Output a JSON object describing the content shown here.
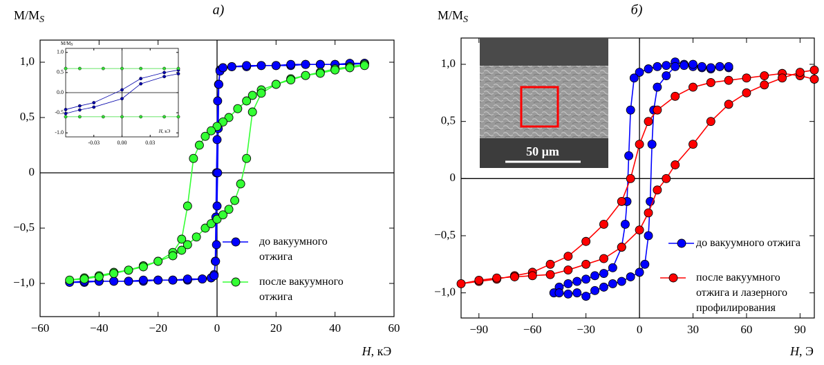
{
  "chart_data": [
    {
      "type": "line",
      "title": "а)",
      "ylabel": "M/M",
      "ylabel_sub": "S",
      "xlabel_var": "H",
      "xlabel_unit": ", кЭ",
      "xlim": [
        -60,
        60
      ],
      "ylim": [
        -1.3,
        1.2
      ],
      "xticks": [
        {
          "value": -60,
          "label": "−60"
        },
        {
          "value": -40,
          "label": "−40"
        },
        {
          "value": -20,
          "label": "−20"
        },
        0,
        20,
        40,
        60
      ],
      "yticks": [
        {
          "value": -1,
          "label": "−1,0"
        },
        {
          "value": -0.5,
          "label": "−0,5"
        },
        0,
        {
          "value": 0.5,
          "label": "0,5"
        },
        {
          "value": 1,
          "label": "1,0"
        }
      ],
      "zero_lines": true,
      "series": [
        {
          "name": "до вакуумного отжига",
          "color": "#0000ff",
          "x": [
            50,
            45,
            40,
            35,
            30,
            25,
            20,
            15,
            10,
            5,
            2,
            1,
            0.5,
            0.2,
            0,
            -0.2,
            -0.4,
            -0.6,
            -1,
            -2,
            -5,
            -10,
            -15,
            -20,
            -25,
            -30,
            -35,
            -40,
            -45,
            -50,
            -45,
            -40,
            -35,
            -30,
            -25,
            -20,
            -15,
            -10,
            -5,
            -2,
            -1,
            -0.5,
            -0.2,
            0,
            0.2,
            0.4,
            0.6,
            1,
            2,
            5,
            10,
            15,
            20,
            25,
            30,
            35,
            40,
            45,
            50
          ],
          "values": [
            0.99,
            0.98,
            0.98,
            0.98,
            0.98,
            0.97,
            0.97,
            0.97,
            0.96,
            0.96,
            0.95,
            0.93,
            0.8,
            0.65,
            0.3,
            0,
            -0.4,
            -0.8,
            -0.92,
            -0.95,
            -0.96,
            -0.97,
            -0.97,
            -0.97,
            -0.98,
            -0.98,
            -0.98,
            -0.98,
            -0.99,
            -0.99,
            -0.98,
            -0.98,
            -0.98,
            -0.98,
            -0.97,
            -0.97,
            -0.97,
            -0.96,
            -0.96,
            -0.95,
            -0.93,
            -0.8,
            -0.65,
            -0.3,
            0,
            0.4,
            0.8,
            0.92,
            0.95,
            0.96,
            0.97,
            0.97,
            0.97,
            0.98,
            0.98,
            0.98,
            0.98,
            0.99,
            0.99
          ]
        },
        {
          "name": "после вакуумного отжига",
          "color": "#33ff33",
          "x": [
            50,
            45,
            40,
            35,
            30,
            25,
            20,
            15,
            12,
            10,
            7,
            4,
            2,
            0,
            -2,
            -4,
            -6,
            -8,
            -10,
            -12,
            -15,
            -20,
            -25,
            -30,
            -35,
            -40,
            -45,
            -50,
            -45,
            -40,
            -35,
            -30,
            -25,
            -20,
            -15,
            -12,
            -10,
            -7,
            -4,
            -2,
            0,
            2,
            4,
            6,
            8,
            10,
            12,
            15,
            20,
            25,
            30,
            35,
            40,
            45,
            50
          ],
          "values": [
            0.98,
            0.96,
            0.94,
            0.91,
            0.88,
            0.85,
            0.8,
            0.75,
            0.7,
            0.65,
            0.58,
            0.5,
            0.46,
            0.42,
            0.38,
            0.33,
            0.25,
            0.13,
            -0.3,
            -0.6,
            -0.72,
            -0.8,
            -0.84,
            -0.88,
            -0.9,
            -0.93,
            -0.95,
            -0.97,
            -0.96,
            -0.94,
            -0.91,
            -0.88,
            -0.85,
            -0.8,
            -0.75,
            -0.7,
            -0.65,
            -0.58,
            -0.5,
            -0.46,
            -0.42,
            -0.38,
            -0.33,
            -0.25,
            -0.1,
            0.13,
            0.55,
            0.72,
            0.8,
            0.84,
            0.88,
            0.9,
            0.93,
            0.95,
            0.97
          ]
        }
      ]
    },
    {
      "type": "line",
      "ylabel": "M/M",
      "ylabel_sub": "S",
      "xlabel_var": "H",
      "xlabel_unit": ", кЭ",
      "xlim": [
        -0.06,
        0.06
      ],
      "ylim": [
        -1.1,
        1.1
      ],
      "xticks": [
        {
          "value": -0.03,
          "label": "-0.03"
        },
        {
          "value": 0,
          "label": "0.00"
        },
        {
          "value": 0.03,
          "label": "0.03"
        }
      ],
      "yticks": [
        {
          "value": -1,
          "label": "-1.0"
        },
        {
          "value": -0.5,
          "label": "-0.5"
        },
        {
          "value": 0,
          "label": "0.0"
        },
        0.5,
        {
          "value": 1,
          "label": "1.0"
        }
      ],
      "zero_lines": true,
      "series": [
        {
          "color": "#0000aa",
          "x": [
            -0.06,
            -0.045,
            -0.03,
            0,
            0.02,
            0.045,
            0.06
          ],
          "values": [
            -0.42,
            -0.33,
            -0.25,
            0.07,
            0.35,
            0.5,
            0.56
          ]
        },
        {
          "color": "#0000aa",
          "x": [
            -0.06,
            -0.045,
            -0.03,
            0,
            0.02,
            0.045,
            0.06
          ],
          "values": [
            -0.52,
            -0.43,
            -0.36,
            -0.15,
            0.22,
            0.4,
            0.47
          ]
        },
        {
          "color": "#33dd33",
          "x": [
            -0.06,
            -0.045,
            -0.02,
            0,
            0.02,
            0.045,
            0.06
          ],
          "values": [
            0.6,
            0.6,
            0.6,
            0.6,
            0.6,
            0.6,
            0.6
          ]
        },
        {
          "color": "#33dd33",
          "x": [
            -0.06,
            -0.045,
            -0.02,
            0,
            0.02,
            0.045,
            0.06
          ],
          "values": [
            -0.6,
            -0.6,
            -0.6,
            -0.6,
            -0.6,
            -0.6,
            -0.6
          ]
        }
      ]
    },
    {
      "type": "line",
      "title": "б)",
      "ylabel": "M/M",
      "ylabel_sub": "S",
      "xlabel_var": "H",
      "xlabel_unit": ", Э",
      "xlim": [
        -100,
        98
      ],
      "ylim": [
        -1.22,
        1.23
      ],
      "xticks": [
        {
          "value": -90,
          "label": "−90"
        },
        {
          "value": -60,
          "label": "−60"
        },
        {
          "value": -30,
          "label": "−30"
        },
        0,
        30,
        60,
        90
      ],
      "yticks": [
        {
          "value": -1,
          "label": "−1,0"
        },
        {
          "value": -0.5,
          "label": "−0,5"
        },
        0,
        {
          "value": 0.5,
          "label": "0,5"
        },
        {
          "value": 1,
          "label": "1,0"
        }
      ],
      "zero_lines": true,
      "series": [
        {
          "name": "до вакуумного отжига",
          "color": "#0000ff",
          "x": [
            50,
            45,
            40,
            35,
            30,
            25,
            20,
            15,
            10,
            5,
            0,
            -3,
            -5,
            -6,
            -7,
            -8,
            -10,
            -15,
            -20,
            -25,
            -30,
            -35,
            -40,
            -45,
            -48,
            -45,
            -40,
            -35,
            -30,
            -25,
            -20,
            -15,
            -10,
            -5,
            0,
            3,
            5,
            6,
            7,
            8,
            10,
            15,
            20,
            25,
            30,
            35,
            40,
            45,
            50
          ],
          "values": [
            0.97,
            0.98,
            0.96,
            0.97,
            0.98,
            1.0,
            1.02,
            0.99,
            0.98,
            0.96,
            0.93,
            0.88,
            0.6,
            0.2,
            -0.2,
            -0.4,
            -0.6,
            -0.78,
            -0.83,
            -0.85,
            -0.88,
            -0.9,
            -0.92,
            -0.95,
            -1.0,
            -1.0,
            -1.01,
            -1.0,
            -1.03,
            -0.98,
            -0.95,
            -0.92,
            -0.9,
            -0.86,
            -0.82,
            -0.75,
            -0.5,
            -0.2,
            0.3,
            0.6,
            0.8,
            0.9,
            0.98,
            0.99,
            1.0,
            0.98,
            0.97,
            0.98,
            0.98
          ]
        },
        {
          "name": "после вакуумного отжига и лазерного профилирования",
          "color": "#ff0000",
          "x": [
            98,
            90,
            80,
            70,
            60,
            50,
            40,
            30,
            20,
            10,
            5,
            0,
            -5,
            -10,
            -20,
            -30,
            -40,
            -50,
            -60,
            -70,
            -80,
            -90,
            -100,
            -90,
            -80,
            -70,
            -60,
            -50,
            -40,
            -30,
            -20,
            -10,
            0,
            5,
            10,
            15,
            20,
            30,
            40,
            50,
            60,
            70,
            80,
            90,
            98
          ],
          "values": [
            0.87,
            0.9,
            0.92,
            0.9,
            0.88,
            0.86,
            0.84,
            0.8,
            0.72,
            0.6,
            0.5,
            0.3,
            0,
            -0.2,
            -0.4,
            -0.55,
            -0.68,
            -0.75,
            -0.82,
            -0.85,
            -0.88,
            -0.9,
            -0.92,
            -0.89,
            -0.87,
            -0.86,
            -0.85,
            -0.84,
            -0.8,
            -0.75,
            -0.7,
            -0.6,
            -0.45,
            -0.3,
            -0.1,
            0,
            0.12,
            0.3,
            0.5,
            0.65,
            0.75,
            0.82,
            0.88,
            0.93,
            0.95
          ]
        }
      ]
    }
  ],
  "image_inset": {
    "scale_label": "50 µm"
  }
}
